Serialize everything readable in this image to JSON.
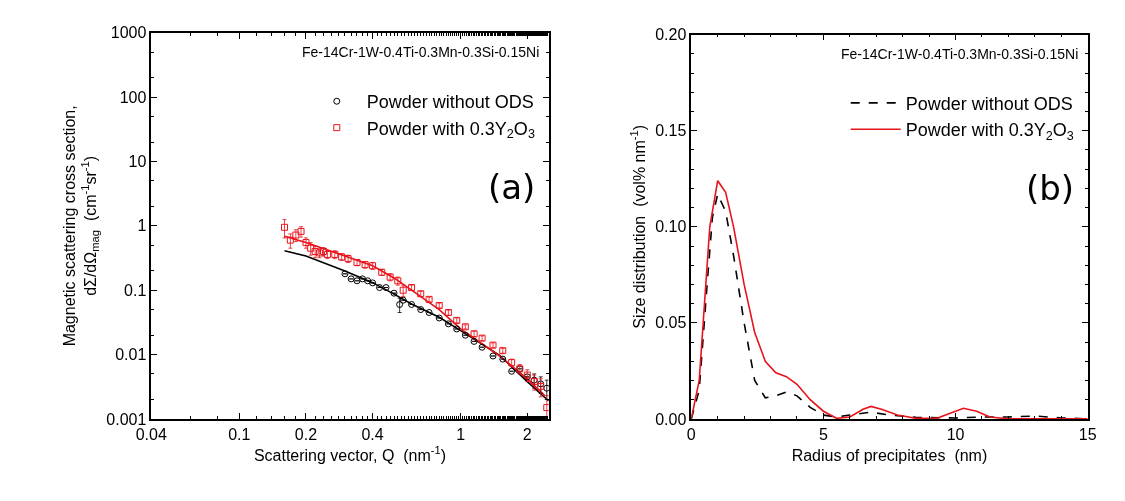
{
  "chart_data": [
    {
      "type": "scatter",
      "xlabel": "Scattering vector, Q  (nm$^{-1}$)",
      "ylabel": "Magnetic scattering cross section,\ndΣ/dΩ$_{mag}$  (cm$^{-1}$sr$^{-1}$)",
      "log": "xy",
      "legend": "top right",
      "xlim": [
        0.04,
        2.5
      ],
      "xticks": [
        0.04,
        0.1,
        0.2,
        0.4,
        1,
        2
      ],
      "ylim": [
        0.001,
        1000
      ],
      "yticks": [
        0.001,
        0.01,
        0.1,
        1,
        10,
        100,
        1000
      ],
      "annotations": [
        "Fe-14Cr-1W-0.4Ti-0.3Mn-0.3Si-0.15Ni",
        "(a)"
      ],
      "series": [
        {
          "name": "Powder without ODS",
          "type": "scatter",
          "marker": "circle",
          "color": "#000000",
          "x": [
            0.3,
            0.32,
            0.34,
            0.36,
            0.38,
            0.4,
            0.43,
            0.46,
            0.5,
            0.53,
            0.55,
            0.6,
            0.66,
            0.72,
            0.8,
            0.88,
            0.96,
            1.05,
            1.15,
            1.25,
            1.4,
            1.55,
            1.7,
            1.85,
            2.0,
            2.15,
            2.3,
            2.45
          ],
          "values": [
            0.18,
            0.15,
            0.14,
            0.15,
            0.14,
            0.13,
            0.11,
            0.11,
            0.09,
            0.06,
            0.07,
            0.06,
            0.05,
            0.045,
            0.037,
            0.03,
            0.025,
            0.02,
            0.016,
            0.013,
            0.0095,
            0.0085,
            0.0055,
            0.006,
            0.0045,
            0.004,
            0.0035,
            0.003
          ],
          "errors": [
            null,
            null,
            null,
            null,
            null,
            null,
            null,
            null,
            null,
            0.015,
            null,
            null,
            null,
            null,
            null,
            null,
            null,
            null,
            null,
            null,
            null,
            null,
            null,
            null,
            null,
            0.001,
            0.001,
            0.001
          ]
        },
        {
          "name": "Powder with 0.3Y$_{2}$O$_{3}$",
          "type": "scatter",
          "marker": "square",
          "color": "#e8141b",
          "x": [
            0.16,
            0.17,
            0.18,
            0.19,
            0.2,
            0.21,
            0.22,
            0.23,
            0.24,
            0.25,
            0.27,
            0.29,
            0.31,
            0.34,
            0.37,
            0.4,
            0.44,
            0.48,
            0.52,
            0.55,
            0.6,
            0.66,
            0.72,
            0.8,
            0.88,
            0.96,
            1.05,
            1.15,
            1.25,
            1.4,
            1.55,
            1.7,
            1.85,
            2.0,
            2.15,
            2.3,
            2.45
          ],
          "values": [
            0.95,
            0.6,
            0.72,
            0.82,
            0.55,
            0.45,
            0.4,
            0.38,
            0.4,
            0.36,
            0.36,
            0.33,
            0.31,
            0.27,
            0.25,
            0.24,
            0.19,
            0.16,
            0.14,
            0.1,
            0.11,
            0.088,
            0.072,
            0.058,
            0.045,
            0.034,
            0.027,
            0.021,
            0.018,
            0.014,
            0.0115,
            0.0075,
            0.006,
            0.0048,
            0.0038,
            0.0032,
            0.0015
          ],
          "errors": [
            0.3,
            0.15,
            0.15,
            0.15,
            0.1,
            0.1,
            0.08,
            0.06,
            0.06,
            0.05,
            0.05,
            0.04,
            0.04,
            0.03,
            0.03,
            0.03,
            0.02,
            0.02,
            0.02,
            0.02,
            0.01,
            0.008,
            0.006,
            0.005,
            0.004,
            0.003,
            0.002,
            0.002,
            0.0015,
            0.0012,
            0.001,
            0.001,
            0.001,
            0.001,
            0.001,
            0.001,
            0.0008
          ]
        },
        {
          "type": "line",
          "color": "#000000",
          "x": [
            0.16,
            0.2,
            0.3,
            0.4,
            0.5,
            0.6,
            0.8,
            1.0,
            1.5,
            2.0,
            2.5
          ],
          "values": [
            0.41,
            0.34,
            0.199,
            0.131,
            0.087,
            0.061,
            0.038,
            0.0236,
            0.0097,
            0.0038,
            0.0019
          ]
        },
        {
          "type": "line",
          "color": "#e8141b",
          "x": [
            0.16,
            0.2,
            0.3,
            0.4,
            0.5,
            0.6,
            0.8,
            1.0,
            1.5,
            2.0,
            2.4
          ],
          "values": [
            0.69,
            0.55,
            0.34,
            0.24,
            0.155,
            0.1,
            0.05,
            0.025,
            0.0095,
            0.0042,
            0.0023
          ]
        }
      ]
    },
    {
      "type": "line",
      "xlabel": "Radius of precipitates  (nm)",
      "ylabel": "Size distribution  (vol% nm$^{-1}$)",
      "legend": "top right",
      "xlim": [
        0,
        15
      ],
      "xticks": [
        0,
        5,
        10,
        15
      ],
      "ylim": [
        0,
        0.2
      ],
      "yticks": [
        {
          "value": 0,
          "label": "0.00"
        },
        {
          "value": 0.05,
          "label": "0.05"
        },
        {
          "value": 0.1,
          "label": "0.10"
        },
        {
          "value": 0.15,
          "label": "0.15"
        },
        {
          "value": 0.2,
          "label": "0.20"
        }
      ],
      "annotations": [
        "Fe-14Cr-1W-0.4Ti-0.3Mn-0.3Si-0.15Ni",
        "(b)"
      ],
      "series": [
        {
          "name": "Powder without ODS",
          "color": "#000000",
          "line_style": "dashed",
          "x": [
            0,
            0.3,
            0.6,
            0.8,
            1.0,
            1.3,
            1.6,
            2.0,
            2.4,
            2.8,
            3.2,
            3.6,
            4.0,
            4.5,
            5.0,
            5.5,
            6.0,
            6.8,
            7.5,
            8.5,
            10,
            11,
            12,
            13,
            14,
            15
          ],
          "values": [
            0,
            0.015,
            0.07,
            0.105,
            0.117,
            0.108,
            0.085,
            0.05,
            0.02,
            0.011,
            0.012,
            0.014,
            0.012,
            0.006,
            0.002,
            0.001,
            0.002,
            0.0035,
            0.002,
            0.0008,
            0.0005,
            0.001,
            0.001,
            0.0015,
            0.0005,
            0
          ]
        },
        {
          "name": "Powder with 0.3Y$_{2}$O$_{3}$",
          "color": "#e8141b",
          "line_style": "solid",
          "x": [
            0,
            0.3,
            0.5,
            0.7,
            1.0,
            1.3,
            1.6,
            2.0,
            2.4,
            2.8,
            3.2,
            3.6,
            4.0,
            4.5,
            5.0,
            5.5,
            6.0,
            6.5,
            6.8,
            7.2,
            7.8,
            8.5,
            9.3,
            9.8,
            10.3,
            10.8,
            11.3,
            12,
            13,
            15
          ],
          "values": [
            0,
            0.02,
            0.06,
            0.1,
            0.124,
            0.118,
            0.1,
            0.07,
            0.045,
            0.03,
            0.024,
            0.022,
            0.018,
            0.01,
            0.004,
            0.0003,
            0.001,
            0.005,
            0.0065,
            0.005,
            0.002,
            0.0003,
            0.0003,
            0.003,
            0.0055,
            0.004,
            0.001,
            0,
            0,
            0
          ]
        }
      ]
    }
  ]
}
